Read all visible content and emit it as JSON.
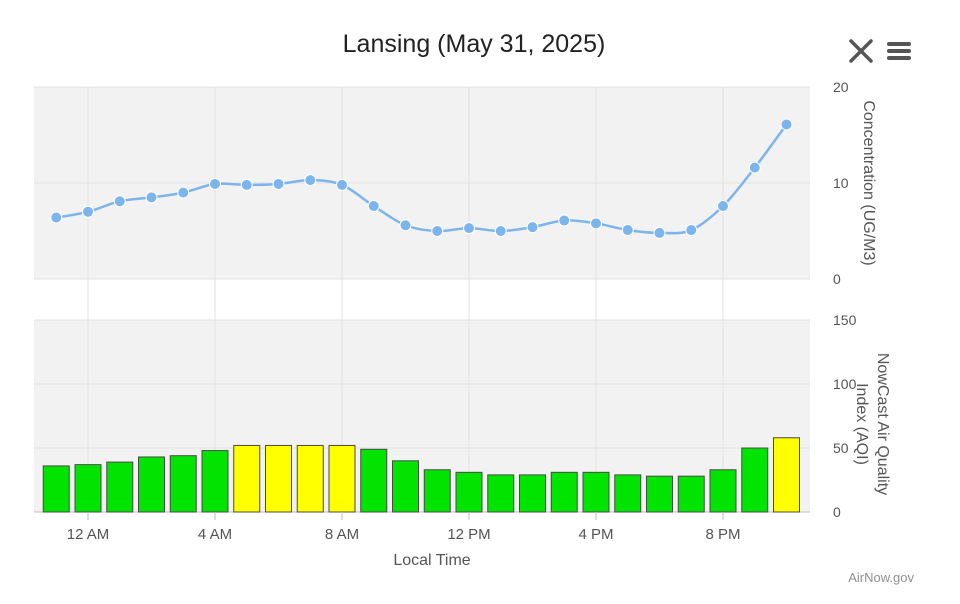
{
  "title": "Lansing (May 31, 2025)",
  "credit": "AirNow.gov",
  "controls": {
    "close_icon": "close-icon",
    "menu_icon": "menu-icon"
  },
  "chart_data": [
    {
      "type": "line",
      "ylabel": "Concentration (UG/M3)",
      "ylim": [
        0,
        20
      ],
      "yticks": [
        "0",
        "10",
        "20"
      ],
      "x_hours": [
        -1,
        0,
        1,
        2,
        3,
        4,
        5,
        6,
        7,
        8,
        9,
        10,
        11,
        12,
        13,
        14,
        15,
        16,
        17,
        18,
        19,
        20,
        21,
        22
      ],
      "values": [
        6.4,
        7.0,
        8.1,
        8.5,
        9.0,
        9.9,
        9.8,
        9.9,
        10.3,
        9.8,
        7.6,
        5.6,
        5.0,
        5.3,
        5.0,
        5.4,
        6.1,
        5.8,
        5.1,
        4.8,
        5.1,
        7.6,
        11.6,
        16.1
      ],
      "color": "#7cb5ec",
      "plot_background": "#f2f2f2",
      "grid": true
    },
    {
      "type": "bar",
      "ylabel": "NowCast Air Quality Index (AQI)",
      "ylim": [
        0,
        150
      ],
      "yticks": [
        "0",
        "50",
        "100",
        "150"
      ],
      "x_hours": [
        -1,
        0,
        1,
        2,
        3,
        4,
        5,
        6,
        7,
        8,
        9,
        10,
        11,
        12,
        13,
        14,
        15,
        16,
        17,
        18,
        19,
        20,
        21,
        22
      ],
      "values": [
        36,
        37,
        39,
        43,
        44,
        48,
        52,
        52,
        52,
        52,
        49,
        40,
        33,
        31,
        29,
        29,
        31,
        31,
        29,
        28,
        28,
        33,
        50,
        58
      ],
      "aqi_colors": {
        "good": "#00e400",
        "moderate": "#ffff00"
      },
      "plot_background": "#f2f2f2",
      "grid": true
    }
  ],
  "x_axis": {
    "xlabel": "Local Time",
    "ticks": [
      {
        "hour": 0,
        "label": "12 AM"
      },
      {
        "hour": 4,
        "label": "4 AM"
      },
      {
        "hour": 8,
        "label": "8 AM"
      },
      {
        "hour": 12,
        "label": "12 PM"
      },
      {
        "hour": 16,
        "label": "4 PM"
      },
      {
        "hour": 20,
        "label": "8 PM"
      }
    ]
  }
}
